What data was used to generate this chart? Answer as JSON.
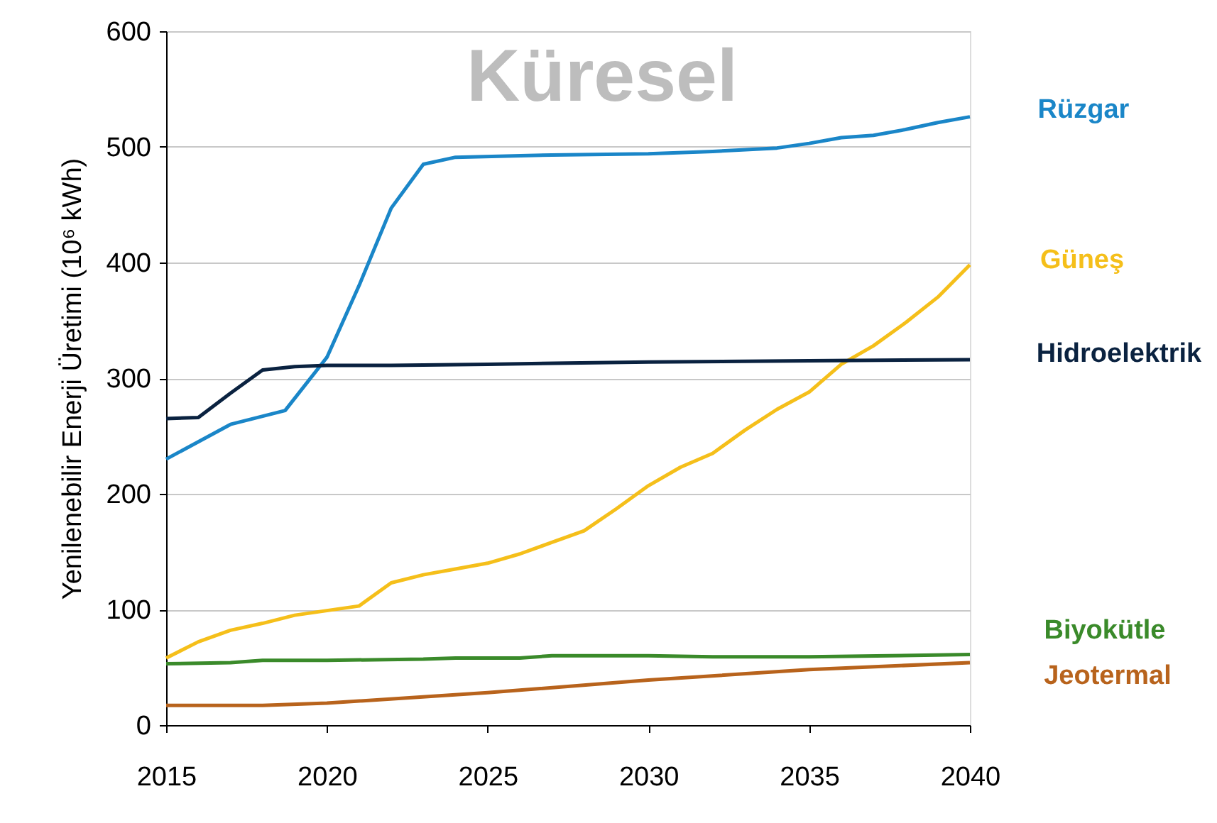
{
  "chart_data": {
    "type": "line",
    "ylabel": "Yenilenebilir Enerji Üretimi (10⁶ kWh)",
    "xlim": [
      2015,
      2040
    ],
    "xticks": [
      2015,
      2020,
      2025,
      2030,
      2035,
      2040
    ],
    "ylim": [
      0,
      600
    ],
    "yticks": [
      0,
      100,
      200,
      300,
      400,
      500,
      600
    ],
    "grid": "y",
    "legend": false,
    "marker": "none",
    "line_style": "solid",
    "annotations": [
      "Küresel"
    ],
    "series": [
      {
        "name": "Rüzgar",
        "color": "#1a86c8",
        "x": [
          2015,
          2017,
          2018.7,
          2020,
          2021,
          2022,
          2023,
          2024,
          2027,
          2030,
          2032,
          2034,
          2035,
          2036,
          2037,
          2038,
          2039,
          2040
        ],
        "values": [
          230,
          260,
          272,
          318,
          380,
          447,
          485,
          491,
          493,
          494,
          496,
          499,
          503,
          508,
          510,
          515,
          521,
          526
        ]
      },
      {
        "name": "Güneş",
        "color": "#f5bf1a",
        "x": [
          2015,
          2016,
          2017,
          2018,
          2019,
          2020,
          2021,
          2022,
          2023,
          2024,
          2025,
          2026,
          2027,
          2028,
          2029,
          2030,
          2031,
          2032,
          2033,
          2034,
          2035,
          2036,
          2037,
          2038,
          2039,
          2040
        ],
        "values": [
          58,
          72,
          82,
          88,
          95,
          99,
          103,
          123,
          130,
          135,
          140,
          148,
          158,
          168,
          187,
          207,
          223,
          235,
          255,
          273,
          288,
          312,
          328,
          348,
          370,
          398
        ]
      },
      {
        "name": "Hidroelektrik",
        "color": "#0a2240",
        "x": [
          2015,
          2016,
          2017,
          2018,
          2019,
          2020,
          2022,
          2025,
          2030,
          2035,
          2040
        ],
        "values": [
          265,
          266,
          287,
          307,
          310,
          311,
          311,
          312,
          314,
          315,
          316
        ]
      },
      {
        "name": "Biyokütle",
        "color": "#3a8a2a",
        "x": [
          2015,
          2017,
          2018,
          2020,
          2023,
          2024,
          2026,
          2027,
          2030,
          2032,
          2035,
          2040
        ],
        "values": [
          53,
          54,
          56,
          56,
          57,
          58,
          58,
          60,
          60,
          59,
          59,
          61
        ]
      },
      {
        "name": "Jeotermal",
        "color": "#b8631c",
        "x": [
          2015,
          2018,
          2020,
          2025,
          2030,
          2035,
          2040
        ],
        "values": [
          17,
          17,
          19,
          28,
          39,
          48,
          54
        ]
      }
    ]
  }
}
